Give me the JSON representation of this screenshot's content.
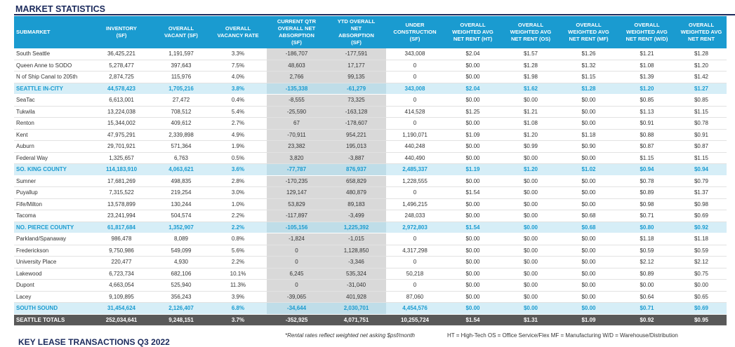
{
  "header": {
    "title": "MARKET STATISTICS"
  },
  "table": {
    "columns": [
      "SUBMARKET",
      "INVENTORY\n(SF)",
      "OVERALL\nVACANT (SF)",
      "OVERALL\nVACANCY RATE",
      "CURRENT QTR\nOVERALL NET\nABSORPTION\n(SF)",
      "YTD OVERALL\nNET\nABSORPTION\n(SF)",
      "UNDER\nCONSTRUCTION\n(SF)",
      "OVERALL\nWEIGHTED AVG\nNET RENT (HT)",
      "OVERALL\nWEIGHTED AVG\nNET RENT (OS)",
      "OVERALL\nWEIGHTED AVG\nNET RENT (MF)",
      "OVERALL\nWEIGHTED AVG\nNET RENT (W/D)",
      "OVERALL\nWEIGHTED AVG\nNET RENT"
    ],
    "rows": [
      [
        "South Seattle",
        "36,425,221",
        "1,191,597",
        "3.3%",
        "-186,707",
        "-177,591",
        "343,008",
        "$2.04",
        "$1.57",
        "$1.26",
        "$1.21",
        "$1.28"
      ],
      [
        "Queen Anne to SODO",
        "5,278,477",
        "397,643",
        "7.5%",
        "48,603",
        "17,177",
        "0",
        "$0.00",
        "$1.28",
        "$1.32",
        "$1.08",
        "$1.20"
      ],
      [
        "N of Ship Canal to 205th",
        "2,874,725",
        "115,976",
        "4.0%",
        "2,766",
        "99,135",
        "0",
        "$0.00",
        "$1.98",
        "$1.15",
        "$1.39",
        "$1.42"
      ],
      [
        "SEATTLE IN-CITY",
        "44,578,423",
        "1,705,216",
        "3.8%",
        "-135,338",
        "-61,279",
        "343,008",
        "$2.04",
        "$1.62",
        "$1.28",
        "$1.20",
        "$1.27"
      ],
      [
        "SeaTac",
        "6,613,001",
        "27,472",
        "0.4%",
        "-8,555",
        "73,325",
        "0",
        "$0.00",
        "$0.00",
        "$0.00",
        "$0.85",
        "$0.85"
      ],
      [
        "Tukwila",
        "13,224,038",
        "708,512",
        "5.4%",
        "-25,590",
        "-163,128",
        "414,528",
        "$1.25",
        "$1.21",
        "$0.00",
        "$1.13",
        "$1.15"
      ],
      [
        "Renton",
        "15,344,002",
        "409,612",
        "2.7%",
        "67",
        "-178,607",
        "0",
        "$0.00",
        "$1.08",
        "$0.00",
        "$0.91",
        "$0.78"
      ],
      [
        "Kent",
        "47,975,291",
        "2,339,898",
        "4.9%",
        "-70,911",
        "954,221",
        "1,190,071",
        "$1.09",
        "$1.20",
        "$1.18",
        "$0.88",
        "$0.91"
      ],
      [
        "Auburn",
        "29,701,921",
        "571,364",
        "1.9%",
        "23,382",
        "195,013",
        "440,248",
        "$0.00",
        "$0.99",
        "$0.90",
        "$0.87",
        "$0.87"
      ],
      [
        "Federal Way",
        "1,325,657",
        "6,763",
        "0.5%",
        "3,820",
        "-3,887",
        "440,490",
        "$0.00",
        "$0.00",
        "$0.00",
        "$1.15",
        "$1.15"
      ],
      [
        "SO. KING COUNTY",
        "114,183,910",
        "4,063,621",
        "3.6%",
        "-77,787",
        "876,937",
        "2,485,337",
        "$1.19",
        "$1.20",
        "$1.02",
        "$0.94",
        "$0.94"
      ],
      [
        "Sumner",
        "17,681,269",
        "498,835",
        "2.8%",
        "-170,235",
        "658,829",
        "1,228,555",
        "$0.00",
        "$0.00",
        "$0.00",
        "$0.78",
        "$0.79"
      ],
      [
        "Puyallup",
        "7,315,522",
        "219,254",
        "3.0%",
        "129,147",
        "480,879",
        "0",
        "$1.54",
        "$0.00",
        "$0.00",
        "$0.89",
        "$1.37"
      ],
      [
        "Fife/Milton",
        "13,578,899",
        "130,244",
        "1.0%",
        "53,829",
        "89,183",
        "1,496,215",
        "$0.00",
        "$0.00",
        "$0.00",
        "$0.98",
        "$0.98"
      ],
      [
        "Tacoma",
        "23,241,994",
        "504,574",
        "2.2%",
        "-117,897",
        "-3,499",
        "248,033",
        "$0.00",
        "$0.00",
        "$0.68",
        "$0.71",
        "$0.69"
      ],
      [
        "NO. PIERCE COUNTY",
        "61,817,684",
        "1,352,907",
        "2.2%",
        "-105,156",
        "1,225,392",
        "2,972,803",
        "$1.54",
        "$0.00",
        "$0.68",
        "$0.80",
        "$0.92"
      ],
      [
        "Parkland/Spanaway",
        "986,478",
        "8,089",
        "0.8%",
        "-1,824",
        "-1,015",
        "0",
        "$0.00",
        "$0.00",
        "$0.00",
        "$1.18",
        "$1.18"
      ],
      [
        "Frederickson",
        "9,750,986",
        "549,099",
        "5.6%",
        "0",
        "1,128,850",
        "4,317,298",
        "$0.00",
        "$0.00",
        "$0.00",
        "$0.59",
        "$0.59"
      ],
      [
        "University Place",
        "220,477",
        "4,930",
        "2.2%",
        "0",
        "-3,346",
        "0",
        "$0.00",
        "$0.00",
        "$0.00",
        "$2.12",
        "$2.12"
      ],
      [
        "Lakewood",
        "6,723,734",
        "682,106",
        "10.1%",
        "6,245",
        "535,324",
        "50,218",
        "$0.00",
        "$0.00",
        "$0.00",
        "$0.89",
        "$0.75"
      ],
      [
        "Dupont",
        "4,663,054",
        "525,940",
        "11.3%",
        "0",
        "-31,040",
        "0",
        "$0.00",
        "$0.00",
        "$0.00",
        "$0.00",
        "$0.00"
      ],
      [
        "Lacey",
        "9,109,895",
        "356,243",
        "3.9%",
        "-39,065",
        "401,928",
        "87,060",
        "$0.00",
        "$0.00",
        "$0.00",
        "$0.64",
        "$0.65"
      ],
      [
        "SOUTH SOUND",
        "31,454,624",
        "2,126,407",
        "6.8%",
        "-34,644",
        "2,030,701",
        "4,454,576",
        "$0.00",
        "$0.00",
        "$0.00",
        "$0.71",
        "$0.69"
      ],
      [
        "SEATTLE TOTALS",
        "252,034,641",
        "9,248,151",
        "3.7%",
        "-352,925",
        "4,071,751",
        "10,255,724",
        "$1.54",
        "$1.31",
        "$1.09",
        "$0.92",
        "$0.95"
      ]
    ]
  },
  "footer": {
    "note": "*Rental rates reflect weighted net asking $psf/month",
    "legend": "HT = High-Tech  OS = Office Service/Flex  MF = Manufacturing  W/D = Warehouse/Distribution",
    "next_section": "KEY LEASE TRANSACTIONS Q3 2022"
  }
}
